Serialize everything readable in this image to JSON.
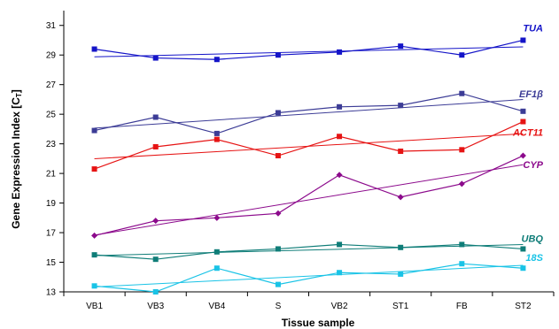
{
  "chart_data": {
    "type": "line",
    "xlabel": "Tissue sample",
    "ylabel": "Gene Expression Index [C",
    "ylabel_sub": "T",
    "ylabel_end": "]",
    "categories": [
      "VB1",
      "VB3",
      "VB4",
      "S",
      "VB2",
      "ST1",
      "FB",
      "ST2"
    ],
    "ylim": [
      13,
      32
    ],
    "yticks": [
      13,
      15,
      17,
      19,
      21,
      23,
      25,
      27,
      29,
      31
    ],
    "trendlines": true,
    "series": [
      {
        "name": "TUA",
        "color": "#1414c8",
        "marker": "square",
        "values": [
          29.4,
          28.8,
          28.7,
          29.0,
          29.2,
          29.6,
          29.0,
          30.0
        ]
      },
      {
        "name": "EF1β",
        "color": "#3c3c96",
        "marker": "square",
        "values": [
          23.9,
          24.8,
          23.7,
          25.1,
          25.5,
          25.6,
          26.4,
          25.2
        ]
      },
      {
        "name": "ACT11",
        "color": "#e61414",
        "marker": "square",
        "values": [
          21.3,
          22.8,
          23.3,
          22.2,
          23.5,
          22.5,
          22.6,
          24.5
        ]
      },
      {
        "name": "CYP",
        "color": "#8c0a8c",
        "marker": "diamond",
        "values": [
          16.8,
          17.8,
          18.0,
          18.3,
          20.9,
          19.4,
          20.3,
          22.2
        ]
      },
      {
        "name": "UBQ",
        "color": "#0f7d78",
        "marker": "square",
        "values": [
          15.5,
          15.2,
          15.7,
          15.9,
          16.2,
          16.0,
          16.2,
          15.9
        ]
      },
      {
        "name": "18S",
        "color": "#19c3e6",
        "marker": "square",
        "values": [
          13.4,
          13.0,
          14.6,
          13.5,
          14.3,
          14.2,
          14.9,
          14.6
        ]
      }
    ]
  }
}
